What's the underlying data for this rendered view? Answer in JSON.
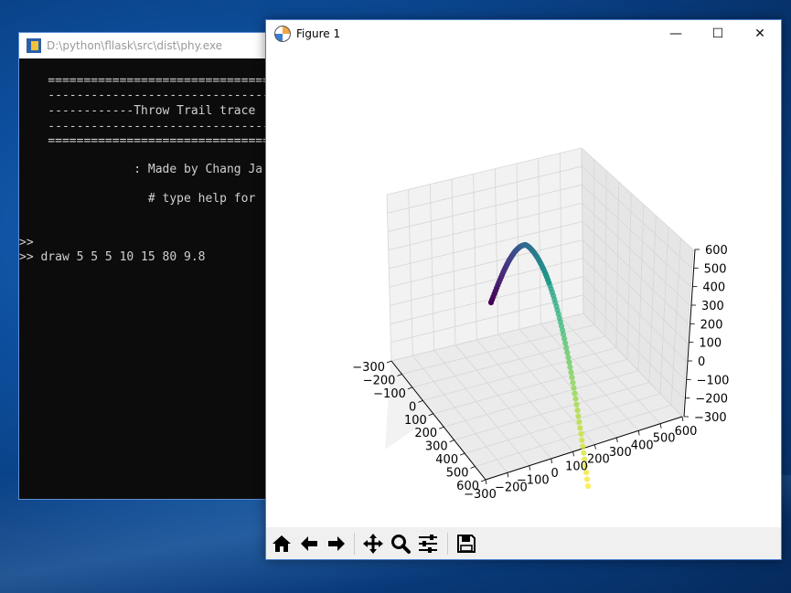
{
  "console": {
    "title": "D:\\python\\fllask\\src\\dist\\phy.exe",
    "lines": [
      "    ==================================",
      "    ----------------------------------",
      "    ------------Throw Trail trace",
      "    ----------------------------------",
      "    ==================================",
      "                : Made by Chang Ja",
      "                  # type help for",
      ">>",
      ">> draw 5 5 5 10 15 80 9.8"
    ]
  },
  "figure": {
    "title": "Figure 1",
    "minimize_glyph": "—",
    "maximize_glyph": "☐",
    "close_glyph": "✕",
    "toolbar": [
      {
        "name": "home-icon"
      },
      {
        "name": "back-arrow-icon"
      },
      {
        "name": "forward-arrow-icon"
      },
      {
        "name": "pan-icon"
      },
      {
        "name": "zoom-icon"
      },
      {
        "name": "sliders-icon"
      },
      {
        "name": "save-icon"
      }
    ]
  },
  "chart_data": {
    "type": "scatter",
    "projection": "3d",
    "x_ticks": [
      "−300",
      "−200",
      "−100",
      "0",
      "100",
      "200",
      "300",
      "400",
      "500",
      "600"
    ],
    "y_ticks": [
      "−300",
      "−200",
      "−100",
      "0",
      "100",
      "200",
      "300",
      "400",
      "500",
      "600"
    ],
    "z_ticks": [
      "600",
      "500",
      "400",
      "300",
      "200",
      "100",
      "0",
      "−100",
      "−200",
      "−300"
    ],
    "xlim": [
      -300,
      600
    ],
    "ylim": [
      -300,
      600
    ],
    "zlim": [
      -300,
      600
    ],
    "grid": true,
    "colormap": "viridis",
    "launch_params": [
      5,
      5,
      5,
      10,
      15,
      80,
      9.8
    ]
  }
}
